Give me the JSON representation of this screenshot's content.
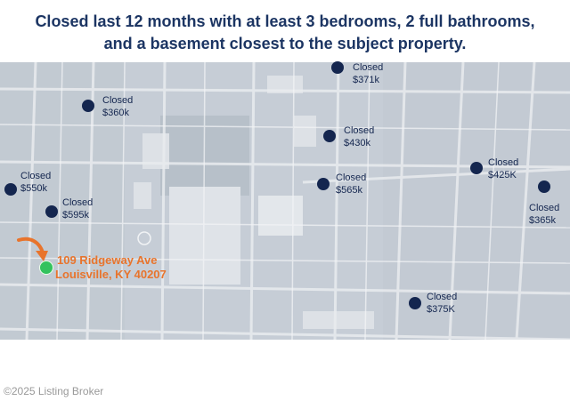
{
  "title": {
    "line1": "Closed last 12 months with at least 3 bedrooms, 2 full bathrooms,",
    "line2": "and a basement closest to the subject property."
  },
  "subject": {
    "street": "109 Ridgeway Ave",
    "city": "Louisville, KY 40207"
  },
  "comps": [
    {
      "status": "Closed",
      "price": "$371k"
    },
    {
      "status": "Closed",
      "price": "$360k"
    },
    {
      "status": "Closed",
      "price": "$430k"
    },
    {
      "status": "Closed",
      "price": "$425K"
    },
    {
      "status": "Closed",
      "price": "$550k"
    },
    {
      "status": "Closed",
      "price": "$565k"
    },
    {
      "status": "Closed",
      "price": "$365k"
    },
    {
      "status": "Closed",
      "price": "$595k"
    },
    {
      "status": "Closed",
      "price": "$375K"
    }
  ],
  "watermark": "©2025 Listing Broker",
  "colors": {
    "title": "#1c3563",
    "marker": "#14264f",
    "subject_marker": "#33c25e",
    "subject_label": "#e8742c"
  }
}
